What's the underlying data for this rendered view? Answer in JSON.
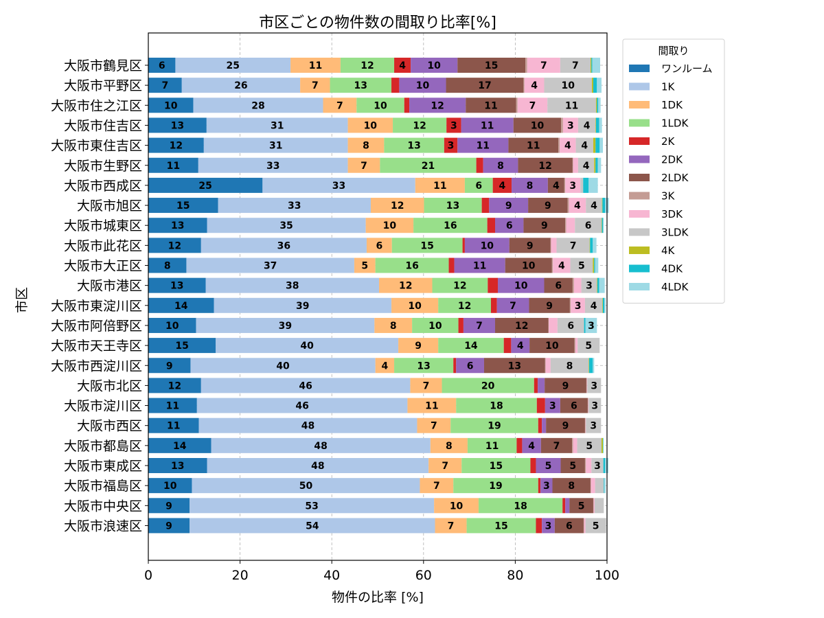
{
  "chart_data": {
    "type": "bar",
    "orientation": "horizontal",
    "stacked": true,
    "title": "市区ごとの物件数の間取り比率[%]",
    "xlabel": "物件の比率 [%]",
    "ylabel": "市区",
    "xlim": [
      0,
      100
    ],
    "xticks": [
      0,
      20,
      40,
      60,
      80,
      100
    ],
    "grid": "dashed",
    "legend_title": "間取り",
    "legend_position": "outside-top-right",
    "categories": [
      "大阪市鶴見区",
      "大阪市平野区",
      "大阪市住之江区",
      "大阪市住吉区",
      "大阪市東住吉区",
      "大阪市生野区",
      "大阪市西成区",
      "大阪市旭区",
      "大阪市城東区",
      "大阪市此花区",
      "大阪市大正区",
      "大阪市港区",
      "大阪市東淀川区",
      "大阪市阿倍野区",
      "大阪市天王寺区",
      "大阪市西淀川区",
      "大阪市北区",
      "大阪市淀川区",
      "大阪市西区",
      "大阪市都島区",
      "大阪市東成区",
      "大阪市福島区",
      "大阪市中央区",
      "大阪市浪速区"
    ],
    "series": [
      {
        "name": "ワンルーム",
        "color": "#1f77b4",
        "values": [
          5.9,
          7.3,
          9.8,
          12.7,
          12.1,
          10.9,
          24.9,
          15.2,
          12.8,
          11.5,
          8.3,
          12.5,
          14.3,
          10.4,
          14.7,
          9.2,
          11.5,
          10.6,
          11.0,
          13.7,
          12.8,
          9.5,
          9.0,
          9.0
        ]
      },
      {
        "name": "1K",
        "color": "#aec7e8",
        "values": [
          25.1,
          25.8,
          28.3,
          30.8,
          31.4,
          32.6,
          33.3,
          33.3,
          34.6,
          36.1,
          36.6,
          37.8,
          38.7,
          38.9,
          39.8,
          40.3,
          45.6,
          45.9,
          47.6,
          47.8,
          48.3,
          49.7,
          53.3,
          53.5
        ]
      },
      {
        "name": "1DK",
        "color": "#ffbb78",
        "values": [
          10.9,
          6.5,
          7.3,
          9.8,
          7.9,
          7.0,
          10.8,
          11.6,
          10.4,
          5.5,
          4.6,
          11.6,
          10.2,
          8.2,
          8.7,
          4.1,
          6.9,
          10.6,
          7.3,
          8.1,
          7.2,
          7.3,
          9.7,
          6.9
        ]
      },
      {
        "name": "1LDK",
        "color": "#98df8a",
        "values": [
          11.7,
          13.4,
          10.4,
          11.7,
          13.1,
          21.0,
          6.1,
          12.6,
          16.1,
          15.4,
          16.0,
          12.1,
          11.5,
          10.1,
          14.3,
          12.9,
          20.1,
          17.6,
          19.1,
          10.7,
          15.0,
          18.5,
          18.3,
          15.1
        ]
      },
      {
        "name": "2K",
        "color": "#d62728",
        "values": [
          3.6,
          1.7,
          1.1,
          3.2,
          2.9,
          1.5,
          4.1,
          1.6,
          1.7,
          0.5,
          1.2,
          2.2,
          1.3,
          1.1,
          1.6,
          0.6,
          0.8,
          1.8,
          0.8,
          1.2,
          1.2,
          0.5,
          0.6,
          1.3
        ]
      },
      {
        "name": "2DK",
        "color": "#9467bd",
        "values": [
          10.2,
          10.2,
          12.3,
          11.4,
          11.1,
          7.6,
          7.9,
          8.5,
          6.2,
          9.7,
          11.1,
          10.1,
          7.0,
          6.9,
          4.0,
          6.1,
          1.5,
          3.3,
          0.9,
          4.1,
          5.4,
          2.6,
          0.9,
          2.8
        ]
      },
      {
        "name": "2LDK",
        "color": "#8c564b",
        "values": [
          14.8,
          16.9,
          11.0,
          10.4,
          10.9,
          11.9,
          3.6,
          8.6,
          9.1,
          9.0,
          10.2,
          6.2,
          8.9,
          11.6,
          9.8,
          13.3,
          9.1,
          6.0,
          8.5,
          6.8,
          5.3,
          8.3,
          5.2,
          6.3
        ]
      },
      {
        "name": "3K",
        "color": "#c49c94",
        "values": [
          0.4,
          0.2,
          0.3,
          0.4,
          0.3,
          0.1,
          0.2,
          0.3,
          0.2,
          0.1,
          0.2,
          0.3,
          0.2,
          0.1,
          0.2,
          0.1,
          0.1,
          0.1,
          0.1,
          0.2,
          0.2,
          0.1,
          0.1,
          0.1
        ]
      },
      {
        "name": "3DK",
        "color": "#f7b6d2",
        "values": [
          7.2,
          4.3,
          6.5,
          3.3,
          3.5,
          1.1,
          3.3,
          3.7,
          1.9,
          1.2,
          3.8,
          1.6,
          3.1,
          1.9,
          0.5,
          1.1,
          0.1,
          0.1,
          0.1,
          0.9,
          1.2,
          0.9,
          0.2,
          0.3
        ]
      },
      {
        "name": "3LDK",
        "color": "#c7c7c7",
        "values": [
          6.6,
          10.4,
          10.6,
          3.8,
          3.8,
          3.5,
          0.6,
          3.5,
          5.8,
          7.2,
          4.9,
          3.4,
          3.8,
          5.8,
          4.8,
          8.3,
          3.0,
          2.7,
          3.3,
          5.3,
          2.6,
          1.9,
          2.0,
          4.5
        ]
      },
      {
        "name": "4K",
        "color": "#bcbd22",
        "values": [
          0.2,
          0.3,
          0.2,
          0.1,
          0.5,
          0.3,
          0.0,
          0.1,
          0.1,
          0.1,
          0.3,
          0.1,
          0.1,
          0.0,
          0.0,
          0.1,
          0.0,
          0.0,
          0.0,
          0.3,
          0.0,
          0.0,
          0.0,
          0.0
        ]
      },
      {
        "name": "4DK",
        "color": "#17becf",
        "values": [
          0.2,
          0.8,
          0.3,
          0.7,
          0.9,
          0.5,
          1.2,
          0.6,
          0.2,
          0.6,
          0.2,
          0.4,
          0.3,
          0.3,
          0.0,
          0.8,
          0.0,
          0.0,
          0.0,
          0.1,
          0.4,
          0.1,
          0.0,
          0.0
        ]
      },
      {
        "name": "4LDK",
        "color": "#9edae5",
        "values": [
          1.7,
          1.0,
          0.5,
          0.6,
          0.7,
          0.7,
          2.0,
          0.8,
          0.2,
          0.8,
          0.7,
          1.2,
          0.3,
          2.5,
          0.0,
          0.3,
          0.0,
          0.0,
          0.0,
          0.0,
          0.7,
          0.3,
          0.0,
          0.0
        ]
      }
    ]
  }
}
